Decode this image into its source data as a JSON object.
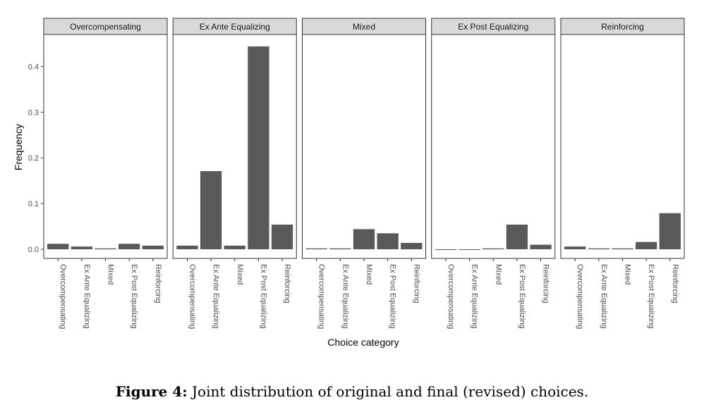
{
  "caption": {
    "label": "Figure 4:",
    "text": "Joint distribution of original and final (revised) choices."
  },
  "chart_data": {
    "type": "bar",
    "ylabel": "Frequency",
    "xlabel": "Choice category",
    "ylim": [
      -0.02,
      0.47
    ],
    "yticks": [
      0.0,
      0.1,
      0.2,
      0.3,
      0.4
    ],
    "ytick_labels": [
      "0.0",
      "0.1",
      "0.2",
      "0.3",
      "0.4"
    ],
    "grid": false,
    "bar_color": "#595959",
    "strip_fill": "#d9d9d9",
    "categories": [
      "Overcompensating",
      "Ex Ante Equalizing",
      "Mixed",
      "Ex Post Equalizing",
      "Reinforcing"
    ],
    "facets": [
      {
        "title": "Overcompensating",
        "values": [
          0.012,
          0.006,
          0.002,
          0.012,
          0.008
        ]
      },
      {
        "title": "Ex Ante Equalizing",
        "values": [
          0.008,
          0.171,
          0.008,
          0.444,
          0.054
        ]
      },
      {
        "title": "Mixed",
        "values": [
          0.002,
          0.002,
          0.044,
          0.035,
          0.014
        ]
      },
      {
        "title": "Ex Post Equalizing",
        "values": [
          0.0,
          0.0,
          0.002,
          0.054,
          0.01
        ]
      },
      {
        "title": "Reinforcing",
        "values": [
          0.006,
          0.002,
          0.002,
          0.016,
          0.079
        ]
      }
    ]
  }
}
